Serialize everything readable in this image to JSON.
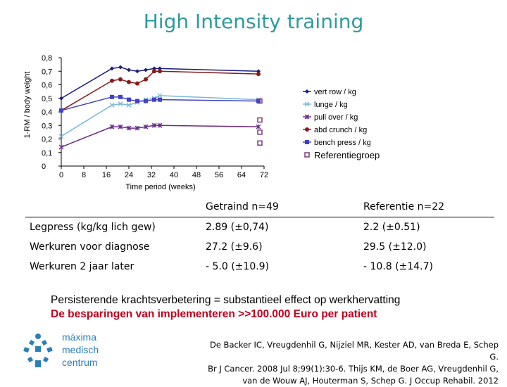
{
  "page": {
    "title": "High Intensity training"
  },
  "chart_data": {
    "type": "line",
    "title": "",
    "ylabel": "1-RM / body weight",
    "xlabel": "Time period (weeks)",
    "ylim": [
      0,
      0.8
    ],
    "xlim": [
      0,
      72
    ],
    "y_ticks": [
      0,
      0.1,
      0.2,
      0.3,
      0.4,
      0.5,
      0.6,
      0.7,
      0.8
    ],
    "y_tick_labels": [
      "0",
      "0,1",
      "0,2",
      "0,3",
      "0,4",
      "0,5",
      "0,6",
      "0,7",
      "0,8"
    ],
    "x_ticks": [
      0,
      8,
      16,
      24,
      32,
      40,
      48,
      56,
      64,
      72
    ],
    "x_tick_labels": [
      "0",
      "8",
      "16",
      "24",
      "32",
      "40",
      "48",
      "56",
      "64",
      "72"
    ],
    "series": [
      {
        "name": "vert row / kg",
        "color": "#1a1a80",
        "marker": "diamond",
        "x": [
          0,
          18,
          21,
          24,
          27,
          30,
          33,
          35,
          70
        ],
        "y": [
          0.5,
          0.72,
          0.73,
          0.71,
          0.7,
          0.71,
          0.72,
          0.72,
          0.7
        ]
      },
      {
        "name": "lunge / kg",
        "color": "#7ab8d6",
        "marker": "x",
        "x": [
          0,
          18,
          21,
          24,
          27,
          30,
          33,
          35,
          70
        ],
        "y": [
          0.22,
          0.45,
          0.46,
          0.45,
          0.47,
          0.49,
          0.5,
          0.52,
          0.49
        ]
      },
      {
        "name": "pull over / kg",
        "color": "#6a2a8a",
        "marker": "star",
        "x": [
          0,
          18,
          21,
          24,
          27,
          30,
          33,
          35,
          70
        ],
        "y": [
          0.14,
          0.29,
          0.29,
          0.28,
          0.28,
          0.29,
          0.3,
          0.3,
          0.29
        ]
      },
      {
        "name": "abd crunch / kg",
        "color": "#8a1a1a",
        "marker": "circle",
        "x": [
          0,
          18,
          21,
          24,
          27,
          30,
          33,
          35,
          70
        ],
        "y": [
          0.41,
          0.63,
          0.64,
          0.62,
          0.61,
          0.64,
          0.7,
          0.7,
          0.68
        ]
      },
      {
        "name": "bench press / kg",
        "color": "#4040c8",
        "marker": "square",
        "x": [
          0,
          18,
          21,
          24,
          27,
          30,
          33,
          35,
          70
        ],
        "y": [
          0.41,
          0.51,
          0.51,
          0.49,
          0.48,
          0.48,
          0.49,
          0.49,
          0.48
        ]
      }
    ],
    "reference": {
      "name": "Referentiegroep",
      "color": "#7a3a7a",
      "marker": "open-square",
      "x": [
        70,
        70,
        70,
        70
      ],
      "y": [
        0.48,
        0.34,
        0.25,
        0.17
      ]
    }
  },
  "table": {
    "header": [
      "",
      "Getraind n=49",
      "Referentie n=22"
    ],
    "rows": [
      [
        "Legpress (kg/kg lich gew)",
        "2.89 (±0,74)",
        "2.2 (±0.51)"
      ],
      [
        "Werkuren voor diagnose",
        "27.2 (±9.6)",
        "29.5 (±12.0)"
      ],
      [
        "Werkuren 2 jaar later",
        "- 5.0 (±10.9)",
        "- 10.8 (±14.7)"
      ]
    ]
  },
  "conclusion": "Persisterende krachtsverbetering = substantieel effect op werkhervatting",
  "savings": "De besparingen van implementeren >>100.000 Euro per patient",
  "logo": {
    "line1": "máxima",
    "line2": "medisch centrum",
    "color": "#2a7fb8"
  },
  "reference_lines": [
    "De Backer IC, Vreugdenhil G, Nijziel MR, Kester AD, van Breda E, Schep G.",
    "Br J Cancer. 2008 Jul 8;99(1):30-6. Thijs KM, de Boer AG, Vreugdenhil G,",
    "van de Wouw AJ, Houterman S, Schep G. J Occup Rehabil. 2012"
  ]
}
